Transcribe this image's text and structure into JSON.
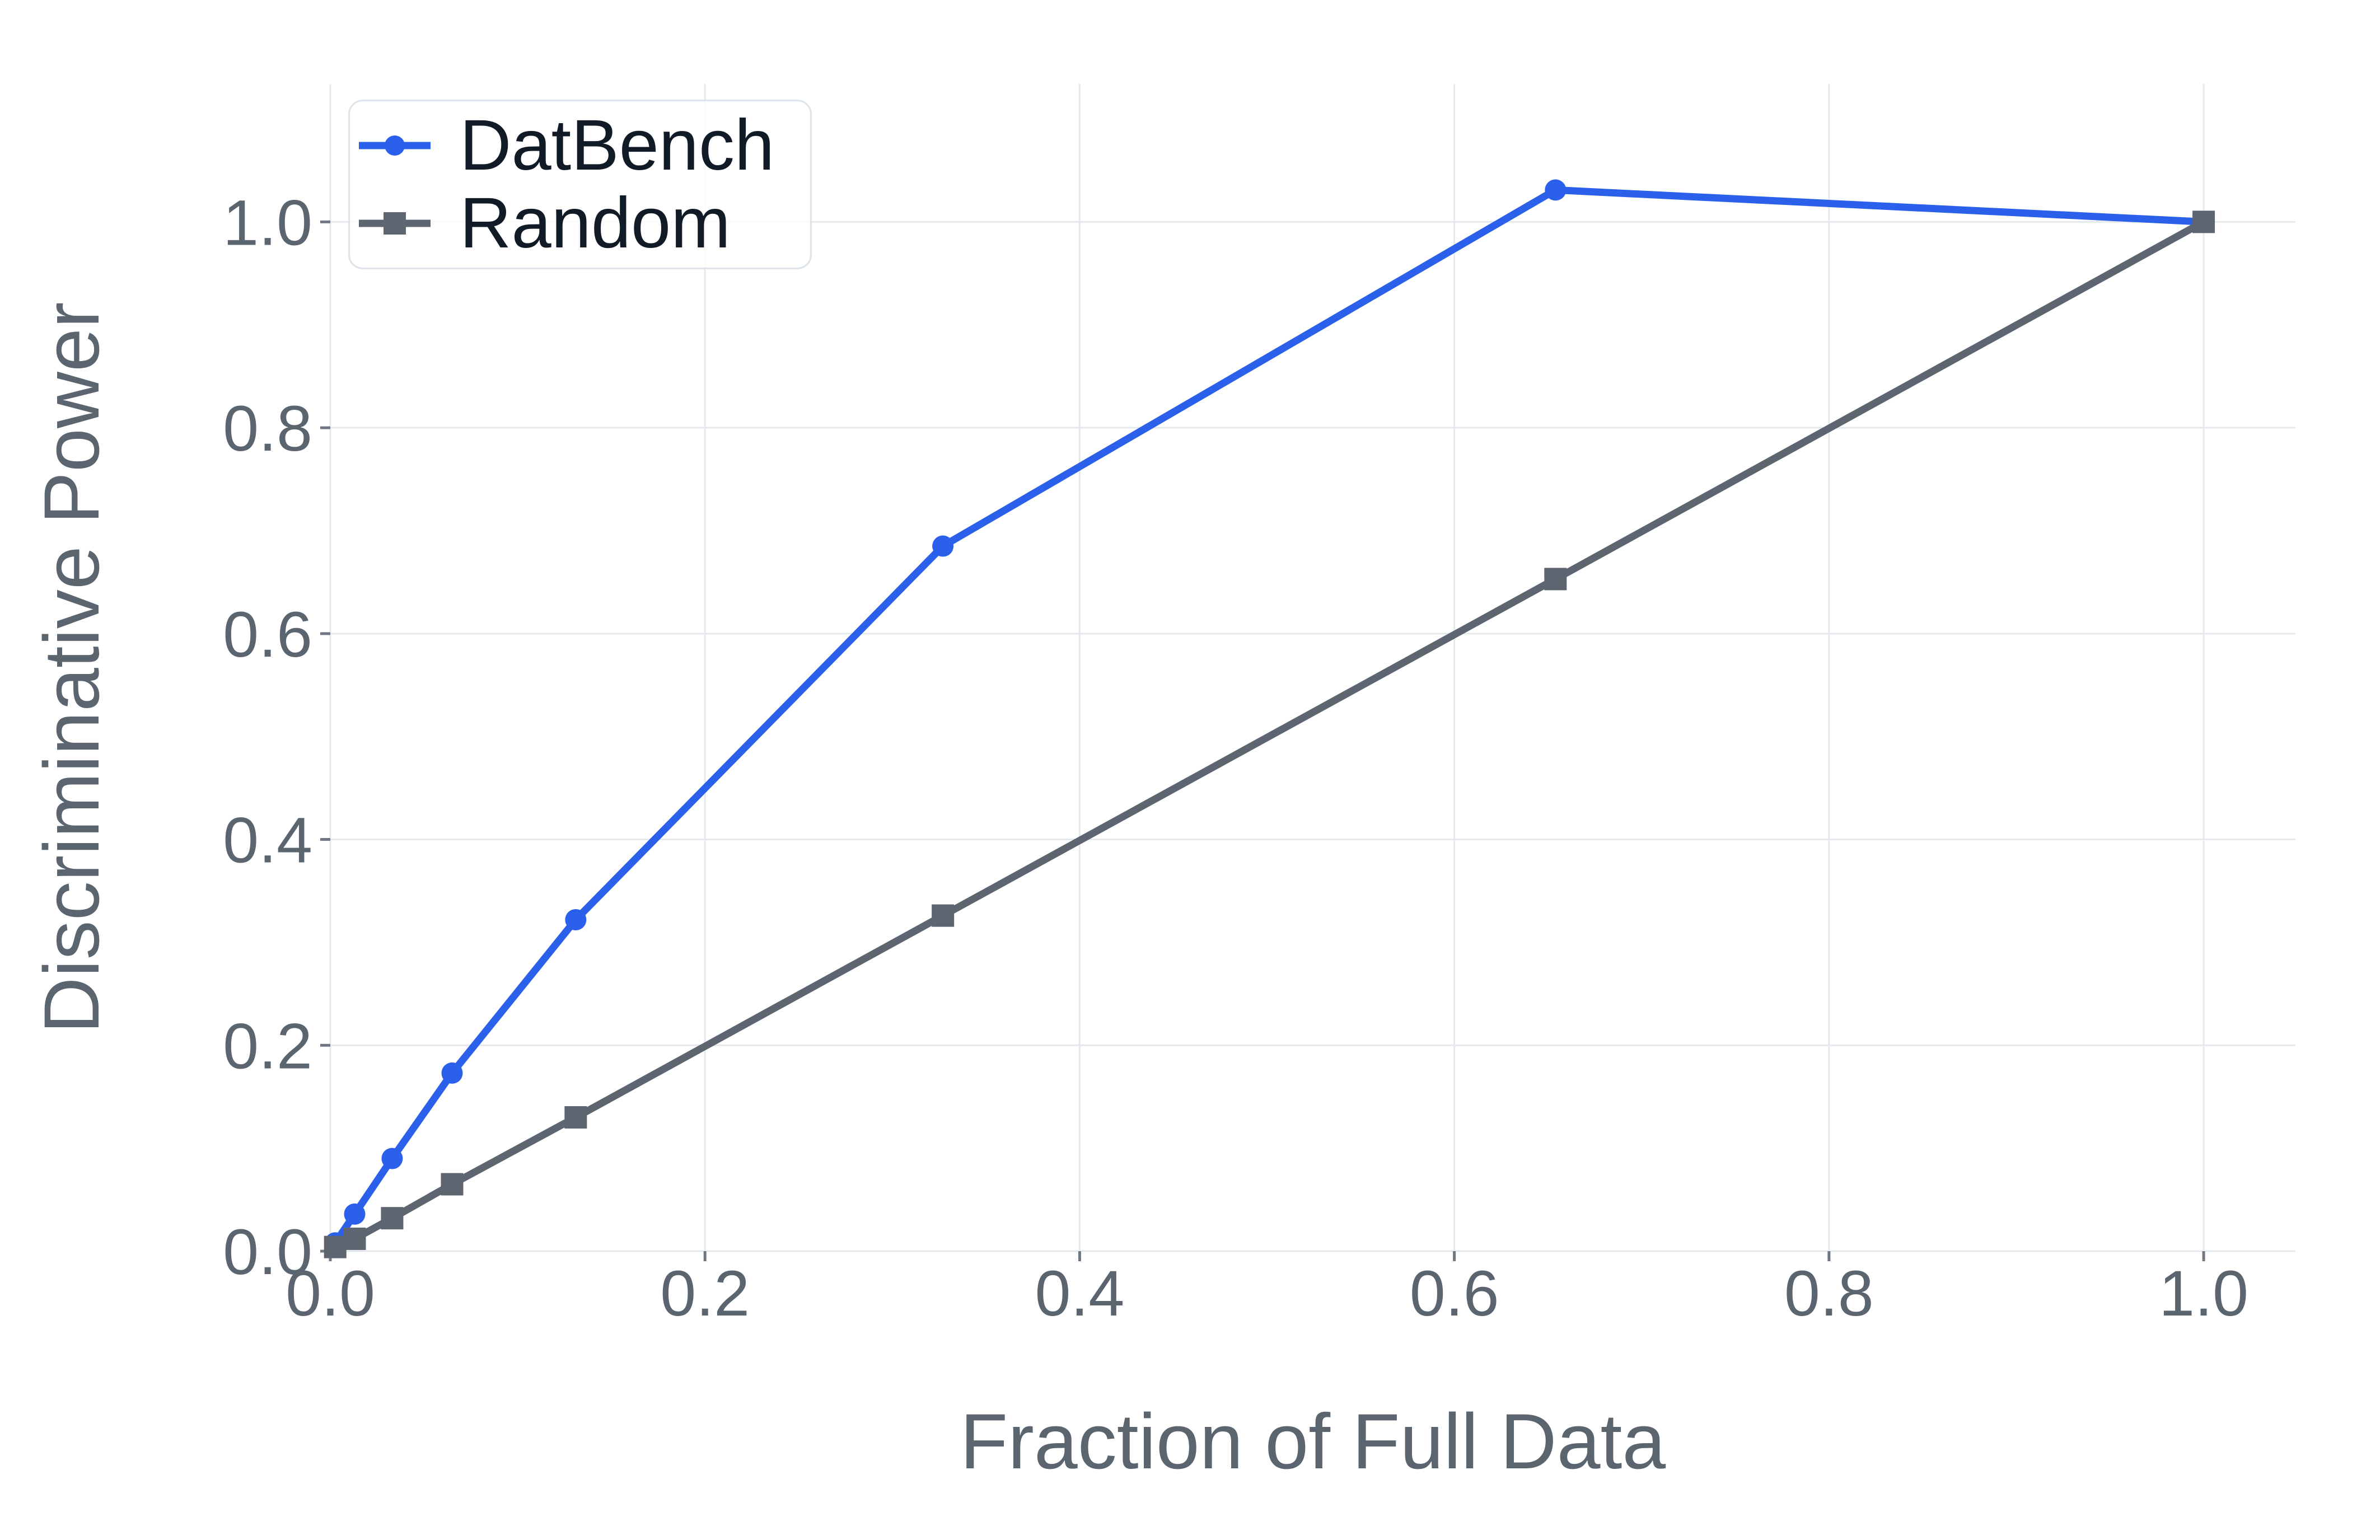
{
  "figure": {
    "background": "#ffffff"
  },
  "chart_data": {
    "type": "line",
    "title": "",
    "xlabel": "Fraction of Full Data",
    "ylabel": "Discriminative Power",
    "x_tick_labels": [
      "0.0",
      "0.2",
      "0.4",
      "0.6",
      "0.8",
      "1.0"
    ],
    "x_tick_values": [
      0,
      0.2,
      0.4,
      0.6,
      0.8,
      1.0
    ],
    "y_tick_labels": [
      "0.0",
      "0.2",
      "0.4",
      "0.6",
      "0.8",
      "1.0"
    ],
    "y_tick_values": [
      0,
      0.2,
      0.4,
      0.6,
      0.8,
      1.0
    ],
    "xlim": [
      0,
      1.049
    ],
    "ylim": [
      0,
      1.134
    ],
    "grid": true,
    "legend_position": "upper-left",
    "x": [
      0.0026,
      0.013,
      0.033,
      0.065,
      0.131,
      0.327,
      0.654,
      1.0
    ],
    "series": [
      {
        "name": "DatBench",
        "color": "#2b60eb",
        "marker": "circle",
        "values": [
          0.008,
          0.036,
          0.09,
          0.173,
          0.322,
          0.685,
          1.031,
          1.0
        ]
      },
      {
        "name": "Random",
        "color": "#5c6570",
        "marker": "square",
        "values": [
          0.004,
          0.012,
          0.032,
          0.065,
          0.13,
          0.326,
          0.653,
          1.0
        ]
      }
    ],
    "colors": {
      "grid": "#e5e8ed",
      "tick": "#6f7882",
      "axis_text": "#5b6570",
      "legend_text": "#111a27",
      "legend_border": "#dde3ea"
    }
  }
}
